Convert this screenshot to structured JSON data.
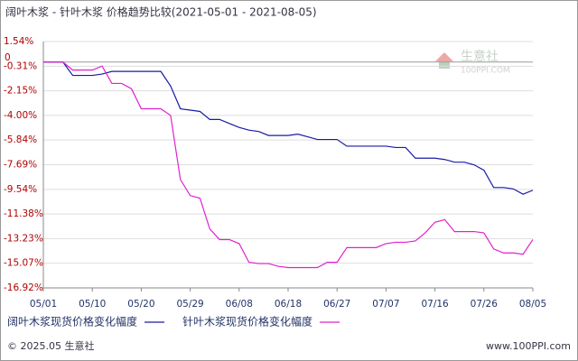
{
  "chart_data": {
    "type": "line",
    "title": "阔叶木浆 - 针叶木浆 价格趋势比较(2021-05-01 - 2021-08-05)",
    "categories": [
      "05/01",
      null,
      null,
      null,
      null,
      "05/10",
      null,
      null,
      null,
      null,
      "05/20",
      null,
      null,
      null,
      null,
      "05/29",
      null,
      null,
      null,
      null,
      "06/08",
      null,
      null,
      null,
      null,
      "06/18",
      null,
      null,
      null,
      null,
      "06/27",
      null,
      null,
      null,
      null,
      "07/07",
      null,
      null,
      null,
      null,
      "07/16",
      null,
      null,
      null,
      null,
      "07/26",
      null,
      null,
      null,
      null,
      "08/05"
    ],
    "series": [
      {
        "name": "阔叶木浆现货价格变化幅度",
        "color": "#1a1aa6",
        "values": [
          0,
          0,
          0,
          -1.0,
          -1.0,
          -1.0,
          -0.9,
          -0.7,
          -0.7,
          -0.7,
          -0.7,
          -0.7,
          -0.7,
          -1.8,
          -3.5,
          -3.6,
          -3.7,
          -4.3,
          -4.3,
          -4.6,
          -4.9,
          -5.1,
          -5.2,
          -5.5,
          -5.5,
          -5.5,
          -5.4,
          -5.6,
          -5.8,
          -5.8,
          -5.8,
          -6.3,
          -6.3,
          -6.3,
          -6.3,
          -6.3,
          -6.4,
          -6.4,
          -7.2,
          -7.2,
          -7.2,
          -7.3,
          -7.5,
          -7.5,
          -7.7,
          -8.1,
          -9.4,
          -9.4,
          -9.5,
          -9.9,
          -9.6
        ]
      },
      {
        "name": "针叶木浆现货价格变化幅度",
        "color": "#e020d0",
        "values": [
          0,
          0,
          0,
          -0.6,
          -0.6,
          -0.6,
          -0.3,
          -1.6,
          -1.6,
          -2.0,
          -3.5,
          -3.5,
          -3.5,
          -4.0,
          -8.8,
          -10.0,
          -10.2,
          -12.5,
          -13.3,
          -13.3,
          -13.6,
          -15.0,
          -15.1,
          -15.1,
          -15.3,
          -15.4,
          -15.4,
          -15.4,
          -15.4,
          -15.0,
          -15.0,
          -13.9,
          -13.9,
          -13.9,
          -13.9,
          -13.6,
          -13.5,
          -13.5,
          -13.4,
          -12.8,
          -12.0,
          -11.8,
          -12.7,
          -12.7,
          -12.7,
          -12.8,
          -14.0,
          -14.3,
          -14.3,
          -14.4,
          -13.3
        ]
      }
    ],
    "ylim": [
      -16.92,
      1.54
    ],
    "yticks": [
      {
        "value": 1.54,
        "label": "1.54%"
      },
      {
        "value": -0.31,
        "label": "-0.31%"
      },
      {
        "value": -2.15,
        "label": "-2.15%"
      },
      {
        "value": -4.0,
        "label": "-4.00%"
      },
      {
        "value": -5.84,
        "label": "-5.84%"
      },
      {
        "value": -7.69,
        "label": "-7.69%"
      },
      {
        "value": -9.54,
        "label": "-9.54%"
      },
      {
        "value": -11.38,
        "label": "-11.38%"
      },
      {
        "value": -13.23,
        "label": "-13.23%"
      },
      {
        "value": -15.07,
        "label": "-15.07%"
      },
      {
        "value": -16.92,
        "label": "-16.92%"
      }
    ],
    "zero_line": 0,
    "grid": true,
    "watermark": [
      "生意社",
      "100PPI.COM"
    ],
    "footer": {
      "left": "© 2025.05 生意社",
      "right": "www.100PPI.com"
    }
  }
}
